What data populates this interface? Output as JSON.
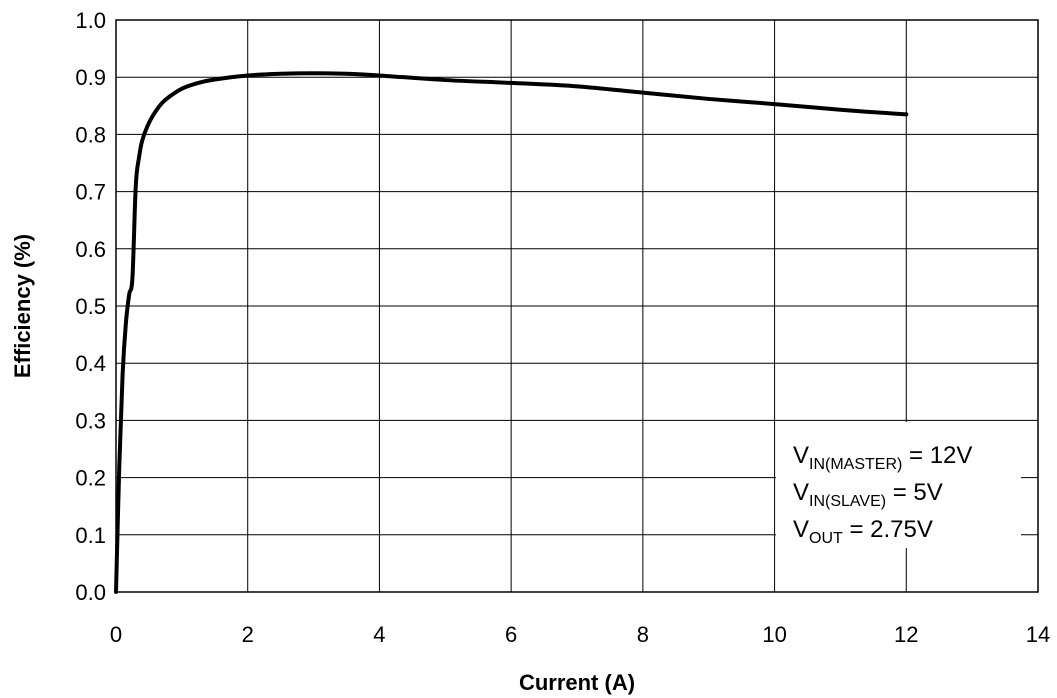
{
  "chart_data": {
    "type": "line",
    "xlabel": "Current (A)",
    "ylabel": "Efficiency (%)",
    "xlim": [
      0,
      14
    ],
    "ylim": [
      0,
      1.0
    ],
    "x_ticks": [
      "0",
      "2",
      "4",
      "6",
      "8",
      "10",
      "12",
      "14"
    ],
    "y_ticks": [
      "0.0",
      "0.1",
      "0.2",
      "0.3",
      "0.4",
      "0.5",
      "0.6",
      "0.7",
      "0.8",
      "0.9",
      "1.0"
    ],
    "grid": true,
    "series": [
      {
        "x": [
          0.0,
          0.05,
          0.1,
          0.15,
          0.2,
          0.25,
          0.3,
          0.35,
          0.4,
          0.5,
          0.6,
          0.7,
          0.8,
          1.0,
          1.25,
          1.5,
          2.0,
          2.5,
          3.0,
          3.5,
          4.0,
          5.0,
          6.0,
          7.0,
          8.0,
          9.0,
          10.0,
          11.0,
          12.0
        ],
        "y": [
          0.0,
          0.22,
          0.38,
          0.47,
          0.52,
          0.55,
          0.71,
          0.76,
          0.79,
          0.82,
          0.84,
          0.855,
          0.865,
          0.88,
          0.89,
          0.896,
          0.903,
          0.906,
          0.907,
          0.906,
          0.903,
          0.895,
          0.89,
          0.884,
          0.873,
          0.862,
          0.853,
          0.843,
          0.835
        ]
      }
    ],
    "legend": {
      "placement": "bottom-right",
      "entries": [
        {
          "main": "V",
          "sub": "IN(MASTER)",
          "rest": " = 12V"
        },
        {
          "main": "V",
          "sub": "IN(SLAVE)",
          "rest": " = 5V"
        },
        {
          "main": "V",
          "sub": "OUT",
          "rest": " = 2.75V"
        }
      ]
    },
    "colors": {
      "line": "#000000",
      "grid": "#000000",
      "background": "#ffffff"
    }
  }
}
